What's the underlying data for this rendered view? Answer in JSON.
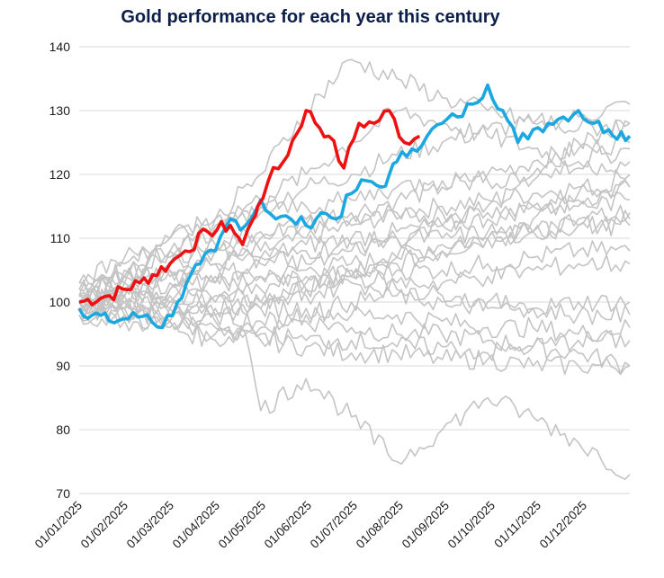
{
  "chart_data": {
    "type": "line",
    "title": "Gold performance for each year this century",
    "xlabel": "",
    "ylabel": "",
    "ylim": [
      70,
      140
    ],
    "yticks": [
      70,
      80,
      90,
      100,
      110,
      120,
      130,
      140
    ],
    "x_tick_labels": [
      "01/01/2025",
      "01/02/2025",
      "01/03/2025",
      "01/04/2025",
      "01/05/2025",
      "01/06/2025",
      "01/07/2025",
      "01/08/2025",
      "01/09/2025",
      "01/10/2025",
      "01/11/2025",
      "01/12/2025"
    ],
    "grid": true,
    "legend": "none",
    "colors": {
      "current": "#ee1111",
      "highlight": "#1ba7e0",
      "other": "#c4c4c4",
      "grid": "#d9d9d9"
    },
    "series": [
      {
        "role": "current",
        "x": [
          0,
          20,
          40,
          60,
          70,
          85,
          100,
          108,
          115,
          118,
          125,
          135,
          150,
          165,
          175,
          185,
          195,
          205,
          215,
          225
        ],
        "y": [
          100,
          101,
          103,
          106,
          108,
          111,
          112,
          109,
          113,
          115,
          119,
          122,
          130,
          126,
          121,
          128,
          128,
          130,
          125,
          126
        ]
      },
      {
        "role": "highlight",
        "x": [
          0,
          20,
          45,
          55,
          65,
          80,
          90,
          100,
          110,
          120,
          130,
          140,
          150,
          160,
          170,
          180,
          190,
          200,
          205,
          210,
          220,
          230,
          240,
          250,
          260,
          270,
          280,
          290,
          300,
          310,
          320,
          330,
          340,
          350,
          364
        ],
        "y": [
          99,
          97,
          98,
          96,
          100,
          106,
          108,
          113,
          112,
          116,
          113,
          113,
          112,
          114,
          113,
          117,
          119,
          118,
          120,
          122,
          124,
          126,
          128,
          129,
          131,
          134,
          130,
          125,
          127,
          128,
          129,
          130,
          128,
          127,
          126
        ]
      },
      {
        "role": "other",
        "x": [
          0,
          30,
          60,
          90,
          120,
          150,
          180,
          210,
          240,
          270,
          300,
          330,
          364
        ],
        "y": [
          99,
          101,
          103,
          106,
          108,
          110,
          112,
          114,
          115,
          116,
          117,
          118,
          118
        ]
      },
      {
        "role": "other",
        "x": [
          0,
          30,
          60,
          90,
          120,
          150,
          180,
          210,
          240,
          270,
          300,
          330,
          364
        ],
        "y": [
          100,
          101,
          102,
          103,
          104,
          105,
          106,
          107,
          109,
          110,
          111,
          112,
          113
        ]
      },
      {
        "role": "other",
        "x": [
          0,
          30,
          60,
          90,
          120,
          150,
          180,
          210,
          240,
          270,
          300,
          330,
          364
        ],
        "y": [
          101,
          103,
          105,
          108,
          110,
          113,
          114,
          116,
          118,
          120,
          122,
          124,
          125
        ]
      },
      {
        "role": "other",
        "x": [
          0,
          30,
          60,
          90,
          120,
          150,
          180,
          210,
          240,
          270,
          300,
          330,
          364
        ],
        "y": [
          98,
          99,
          100,
          101,
          100,
          102,
          104,
          106,
          108,
          110,
          113,
          116,
          118
        ]
      },
      {
        "role": "other",
        "x": [
          0,
          30,
          60,
          90,
          120,
          150,
          180,
          210,
          240,
          270,
          300,
          330,
          364
        ],
        "y": [
          102,
          104,
          108,
          111,
          115,
          118,
          120,
          123,
          125,
          127,
          128,
          129,
          131
        ]
      },
      {
        "role": "other",
        "x": [
          0,
          30,
          60,
          90,
          120,
          150,
          180,
          210,
          240,
          270,
          300,
          330,
          364
        ],
        "y": [
          100,
          100,
          99,
          98,
          97,
          97,
          96,
          95,
          95,
          94,
          93,
          92,
          90
        ]
      },
      {
        "role": "other",
        "x": [
          0,
          30,
          60,
          90,
          120,
          150,
          180,
          210,
          240,
          270,
          300,
          330,
          364
        ],
        "y": [
          100,
          99,
          97,
          95,
          94,
          93,
          92,
          92,
          91,
          91,
          90,
          90,
          90
        ]
      },
      {
        "role": "other",
        "x": [
          0,
          30,
          60,
          90,
          120,
          150,
          180,
          210,
          240,
          270,
          300,
          330,
          364
        ],
        "y": [
          99,
          100,
          102,
          103,
          104,
          103,
          104,
          105,
          105,
          106,
          107,
          108,
          108
        ]
      },
      {
        "role": "other",
        "x": [
          0,
          30,
          60,
          90,
          120,
          150,
          180,
          210,
          240,
          270,
          300,
          330,
          364
        ],
        "y": [
          101,
          102,
          104,
          106,
          107,
          109,
          110,
          111,
          112,
          113,
          115,
          117,
          120
        ]
      },
      {
        "role": "other",
        "x": [
          0,
          30,
          60,
          90,
          120,
          150,
          180,
          210,
          240,
          270,
          300,
          330,
          364
        ],
        "y": [
          100,
          102,
          101,
          100,
          99,
          99,
          98,
          98,
          97,
          96,
          96,
          95,
          96
        ]
      },
      {
        "role": "other",
        "x": [
          0,
          30,
          60,
          90,
          120,
          150,
          180,
          210,
          240,
          270,
          300,
          330,
          364
        ],
        "y": [
          103,
          106,
          110,
          113,
          116,
          120,
          125,
          130,
          128,
          126,
          124,
          122,
          124
        ]
      },
      {
        "role": "other",
        "x": [
          0,
          30,
          60,
          90,
          120,
          150,
          180,
          210,
          240,
          270,
          300,
          330,
          364
        ],
        "y": [
          99,
          98,
          96,
          94,
          96,
          98,
          100,
          101,
          100,
          99,
          99,
          100,
          100
        ]
      },
      {
        "role": "other",
        "x": [
          0,
          30,
          60,
          90,
          120,
          150,
          180,
          210,
          240,
          270,
          300,
          330,
          364
        ],
        "y": [
          100,
          103,
          105,
          104,
          106,
          108,
          109,
          110,
          110,
          111,
          111,
          112,
          112
        ]
      },
      {
        "role": "other",
        "x": [
          0,
          30,
          60,
          90,
          120,
          150,
          180,
          210,
          240,
          270,
          300,
          330,
          364
        ],
        "y": [
          101,
          104,
          107,
          109,
          111,
          112,
          113,
          113,
          114,
          114,
          115,
          115,
          116
        ]
      },
      {
        "role": "other",
        "x": [
          0,
          30,
          60,
          90,
          120,
          150,
          180,
          210,
          240,
          270,
          300,
          330,
          364
        ],
        "y": [
          98,
          97,
          97,
          98,
          99,
          101,
          103,
          102,
          101,
          100,
          99,
          98,
          98
        ]
      },
      {
        "role": "other",
        "x": [
          0,
          30,
          60,
          90,
          120,
          150,
          180,
          210,
          240,
          270,
          300,
          330,
          364
        ],
        "y": [
          102,
          105,
          108,
          113,
          120,
          130,
          138,
          135,
          132,
          130,
          128,
          127,
          128
        ]
      },
      {
        "role": "other",
        "x": [
          0,
          30,
          60,
          90,
          120,
          150,
          180,
          210,
          240,
          270,
          300,
          330,
          364
        ],
        "y": [
          100,
          101,
          100,
          99,
          100,
          102,
          105,
          107,
          108,
          110,
          111,
          113,
          114
        ]
      },
      {
        "role": "other",
        "x": [
          0,
          30,
          60,
          90,
          120,
          150,
          180,
          210,
          240,
          270,
          300,
          330,
          364
        ],
        "y": [
          99,
          98,
          99,
          100,
          102,
          104,
          104,
          103,
          103,
          104,
          105,
          106,
          106
        ]
      },
      {
        "role": "other",
        "x": [
          0,
          30,
          60,
          90,
          120,
          150,
          180,
          210,
          240,
          270,
          300,
          330,
          364
        ],
        "y": [
          100,
          99,
          97,
          96,
          95,
          94,
          94,
          93,
          93,
          92,
          93,
          94,
          94
        ]
      },
      {
        "role": "other",
        "x": [
          0,
          30,
          60,
          90,
          120,
          150,
          180,
          210,
          240,
          270,
          300,
          330,
          364
        ],
        "y": [
          101,
          104,
          106,
          108,
          107,
          106,
          108,
          110,
          112,
          115,
          119,
          125,
          128
        ]
      },
      {
        "role": "other",
        "x": [
          0,
          30,
          60,
          90,
          110,
          120,
          150,
          180,
          210,
          240,
          270,
          300,
          330,
          364
        ],
        "y": [
          100,
          101,
          98,
          97,
          95,
          83,
          88,
          82,
          75,
          80,
          85,
          82,
          78,
          73
        ]
      },
      {
        "role": "other",
        "x": [
          0,
          30,
          60,
          90,
          120,
          150,
          180,
          210,
          240,
          270,
          300,
          330,
          364
        ],
        "y": [
          103,
          107,
          110,
          112,
          114,
          115,
          116,
          118,
          119,
          119,
          120,
          121,
          122
        ]
      }
    ]
  }
}
